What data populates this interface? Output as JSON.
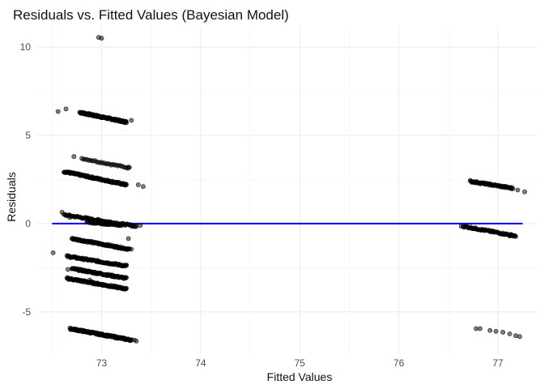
{
  "chart_data": {
    "type": "scatter",
    "title": "Residuals vs. Fitted Values (Bayesian Model)",
    "xlabel": "Fitted Values",
    "ylabel": "Residuals",
    "xlim": [
      72.35,
      77.4
    ],
    "ylim": [
      -7.35,
      11.2
    ],
    "x_ticks": [
      73,
      74,
      75,
      76,
      77
    ],
    "y_ticks": [
      -5,
      0,
      5,
      10
    ],
    "grid": true,
    "legend": "none",
    "point_color": "#000000",
    "point_opacity": 0.5,
    "reference_line": {
      "y": 0,
      "x": [
        72.5,
        77.25
      ],
      "color": "#0000ff"
    },
    "series": [
      {
        "clusters": [
          {
            "x": [
              72.78,
              73.25
            ],
            "y": [
              6.3,
              5.75
            ],
            "n": 120
          },
          {
            "x": [
              72.8,
              73.28
            ],
            "y": [
              3.7,
              3.15
            ],
            "n": 30
          },
          {
            "x": [
              72.62,
              73.25
            ],
            "y": [
              2.95,
              2.2
            ],
            "n": 120
          },
          {
            "x": [
              72.62,
              73.35
            ],
            "y": [
              0.5,
              -0.15
            ],
            "n": 80
          },
          {
            "x": [
              72.85,
              73.2
            ],
            "y": [
              0.1,
              -0.1
            ],
            "n": 40
          },
          {
            "x": [
              72.7,
              73.28
            ],
            "y": [
              -0.85,
              -1.45
            ],
            "n": 90
          },
          {
            "x": [
              72.65,
              73.25
            ],
            "y": [
              -1.85,
              -2.4
            ],
            "n": 90
          },
          {
            "x": [
              72.7,
              73.25
            ],
            "y": [
              -2.55,
              -3.1
            ],
            "n": 90
          },
          {
            "x": [
              72.65,
              73.25
            ],
            "y": [
              -3.1,
              -3.7
            ],
            "n": 110
          },
          {
            "x": [
              72.68,
              73.3
            ],
            "y": [
              -5.95,
              -6.6
            ],
            "n": 130
          },
          {
            "x": [
              76.72,
              77.15
            ],
            "y": [
              2.4,
              2.0
            ],
            "n": 60
          },
          {
            "x": [
              76.65,
              77.18
            ],
            "y": [
              -0.15,
              -0.7
            ],
            "n": 70
          }
        ],
        "points": [
          {
            "x": 72.97,
            "y": 10.55
          },
          {
            "x": 73.0,
            "y": 10.5
          },
          {
            "x": 72.56,
            "y": 6.35
          },
          {
            "x": 72.64,
            "y": 6.5
          },
          {
            "x": 72.92,
            "y": 6.1
          },
          {
            "x": 73.3,
            "y": 5.85
          },
          {
            "x": 72.72,
            "y": 3.8
          },
          {
            "x": 73.27,
            "y": 3.2
          },
          {
            "x": 73.37,
            "y": 2.2
          },
          {
            "x": 73.42,
            "y": 2.1
          },
          {
            "x": 72.6,
            "y": 0.65
          },
          {
            "x": 72.68,
            "y": 0.35
          },
          {
            "x": 72.99,
            "y": 0.15
          },
          {
            "x": 73.39,
            "y": -0.1
          },
          {
            "x": 73.27,
            "y": -0.85
          },
          {
            "x": 73.3,
            "y": -1.45
          },
          {
            "x": 72.51,
            "y": -1.65
          },
          {
            "x": 72.66,
            "y": -2.6
          },
          {
            "x": 73.25,
            "y": -2.35
          },
          {
            "x": 72.88,
            "y": -3.2
          },
          {
            "x": 73.33,
            "y": -6.6
          },
          {
            "x": 73.35,
            "y": -6.65
          },
          {
            "x": 77.27,
            "y": 1.8
          },
          {
            "x": 77.2,
            "y": 1.9
          },
          {
            "x": 76.63,
            "y": -0.15
          },
          {
            "x": 77.12,
            "y": -0.7
          },
          {
            "x": 76.78,
            "y": -5.95
          },
          {
            "x": 76.82,
            "y": -5.95
          },
          {
            "x": 76.92,
            "y": -6.05
          },
          {
            "x": 76.98,
            "y": -6.1
          },
          {
            "x": 77.05,
            "y": -6.15
          },
          {
            "x": 77.12,
            "y": -6.25
          },
          {
            "x": 77.18,
            "y": -6.35
          },
          {
            "x": 77.22,
            "y": -6.4
          }
        ]
      }
    ]
  }
}
